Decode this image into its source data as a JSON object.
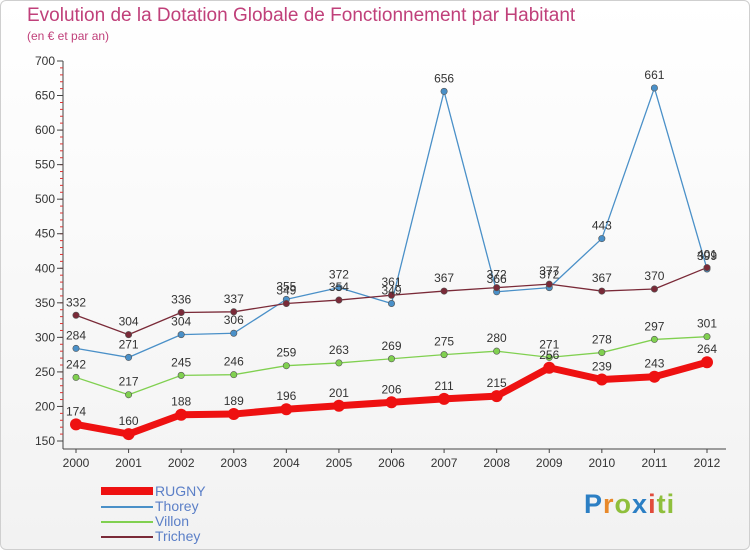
{
  "chart_data": {
    "type": "line",
    "title": "Evolution de la Dotation Globale de Fonctionnement par Habitant",
    "subtitle": "(en € et par an)",
    "x": [
      "2000",
      "2001",
      "2002",
      "2003",
      "2004",
      "2005",
      "2006",
      "2007",
      "2008",
      "2009",
      "2010",
      "2011",
      "2012"
    ],
    "ylim": [
      150,
      700
    ],
    "yticks": [
      150,
      200,
      250,
      300,
      350,
      400,
      450,
      500,
      550,
      600,
      650,
      700
    ],
    "grid": false,
    "legend_position": "bottom-left",
    "series": [
      {
        "name": "RUGNY",
        "color": "#ee1111",
        "values": [
          174,
          160,
          188,
          189,
          196,
          201,
          206,
          211,
          215,
          256,
          239,
          243,
          264
        ],
        "labels": [
          "174",
          "160",
          "188",
          "189",
          "196",
          "201",
          "206",
          "211",
          "215",
          "256",
          "239",
          "243",
          "264"
        ]
      },
      {
        "name": "Thorey",
        "color": "#4a90c8",
        "values": [
          284,
          271,
          304,
          306,
          355,
          372,
          349,
          656,
          366,
          372,
          443,
          661,
          399
        ],
        "labels": [
          "284",
          "271",
          "304",
          "306",
          "355",
          "372",
          "349",
          "656",
          "366",
          "372",
          "443",
          "661",
          "399"
        ]
      },
      {
        "name": "Villon",
        "color": "#80d050",
        "values": [
          242,
          217,
          245,
          246,
          259,
          263,
          269,
          275,
          280,
          271,
          278,
          297,
          301
        ],
        "labels": [
          "242",
          "217",
          "245",
          "246",
          "259",
          "263",
          "269",
          "275",
          "280",
          "271",
          "278",
          "297",
          "301"
        ]
      },
      {
        "name": "Trichey",
        "color": "#7a2a38",
        "values": [
          332,
          304,
          336,
          337,
          349,
          354,
          361,
          367,
          372,
          377,
          367,
          370,
          401
        ],
        "labels": [
          "332",
          "304",
          "336",
          "337",
          "349",
          "354",
          "361",
          "367",
          "372",
          "377",
          "367",
          "370",
          "401"
        ]
      }
    ]
  },
  "brand": {
    "letters": [
      "P",
      "r",
      "o",
      "x",
      "i",
      "ti"
    ]
  }
}
